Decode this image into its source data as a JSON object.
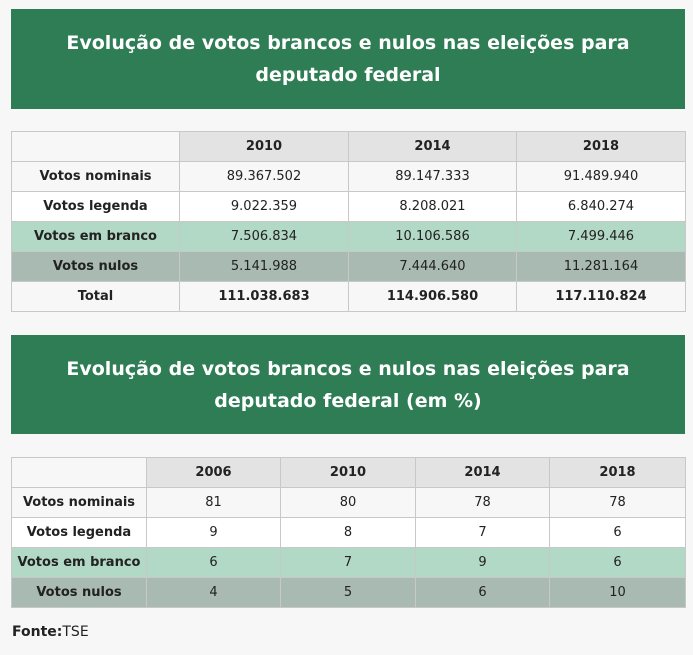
{
  "table1": {
    "title": "Evolução de votos brancos e nulos nas eleições para deputado federal",
    "years": [
      "2010",
      "2014",
      "2018"
    ],
    "rows": [
      {
        "label": "Votos nominais",
        "values": [
          "89.367.502",
          "89.147.333",
          "91.489.940"
        ]
      },
      {
        "label": "Votos legenda",
        "values": [
          "9.022.359",
          "8.208.021",
          "6.840.274"
        ]
      },
      {
        "label": "Votos em branco",
        "values": [
          "7.506.834",
          "10.106.586",
          "7.499.446"
        ]
      },
      {
        "label": "Votos nulos",
        "values": [
          "5.141.988",
          "7.444.640",
          "11.281.164"
        ]
      },
      {
        "label": "Total",
        "values": [
          "111.038.683",
          "114.906.580",
          "117.110.824"
        ]
      }
    ]
  },
  "table2": {
    "title": "Evolução de votos brancos e nulos nas eleições para deputado federal (em %)",
    "years": [
      "2006",
      "2010",
      "2014",
      "2018"
    ],
    "rows": [
      {
        "label": "Votos nominais",
        "values": [
          "81",
          "80",
          "78",
          "78"
        ]
      },
      {
        "label": "Votos legenda",
        "values": [
          "9",
          "8",
          "7",
          "6"
        ]
      },
      {
        "label": "Votos em branco",
        "values": [
          "6",
          "7",
          "9",
          "6"
        ]
      },
      {
        "label": "Votos nulos",
        "values": [
          "4",
          "5",
          "6",
          "10"
        ]
      }
    ]
  },
  "source": {
    "label": "Fonte:",
    "value": "TSE"
  },
  "colors": {
    "banner": "#2e7d55",
    "row_branco": "#b2d8c6",
    "row_nulos": "#a8bab2",
    "header": "#e3e3e3"
  }
}
